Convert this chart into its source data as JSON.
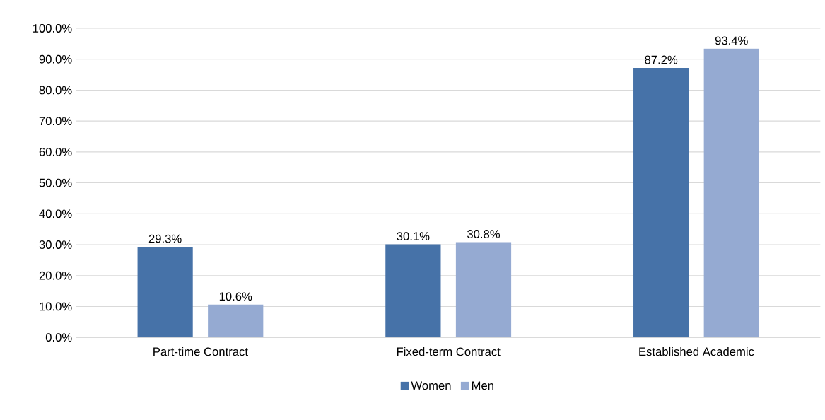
{
  "chart_data": {
    "type": "bar",
    "categories": [
      "Part-time Contract",
      "Fixed-term Contract",
      "Established Academic"
    ],
    "series": [
      {
        "name": "Women",
        "color": "#4672a8",
        "values": [
          29.3,
          30.1,
          87.2
        ],
        "value_labels": [
          "29.3%",
          "30.1%",
          "87.2%"
        ]
      },
      {
        "name": "Men",
        "color": "#95aad2",
        "values": [
          10.6,
          30.8,
          93.4
        ],
        "value_labels": [
          "10.6%",
          "30.8%",
          "93.4%"
        ]
      }
    ],
    "ylim": [
      0,
      100
    ],
    "yticks": [
      {
        "value": 0,
        "label": "0.0%"
      },
      {
        "value": 10,
        "label": "10.0%"
      },
      {
        "value": 20,
        "label": "20.0%"
      },
      {
        "value": 30,
        "label": "30.0%"
      },
      {
        "value": 40,
        "label": "40.0%"
      },
      {
        "value": 50,
        "label": "50.0%"
      },
      {
        "value": 60,
        "label": "60.0%"
      },
      {
        "value": 70,
        "label": "70.0%"
      },
      {
        "value": 80,
        "label": "80.0%"
      },
      {
        "value": 90,
        "label": "90.0%"
      },
      {
        "value": 100,
        "label": "100.0%"
      }
    ],
    "grid": "y",
    "legend": "bottom"
  }
}
